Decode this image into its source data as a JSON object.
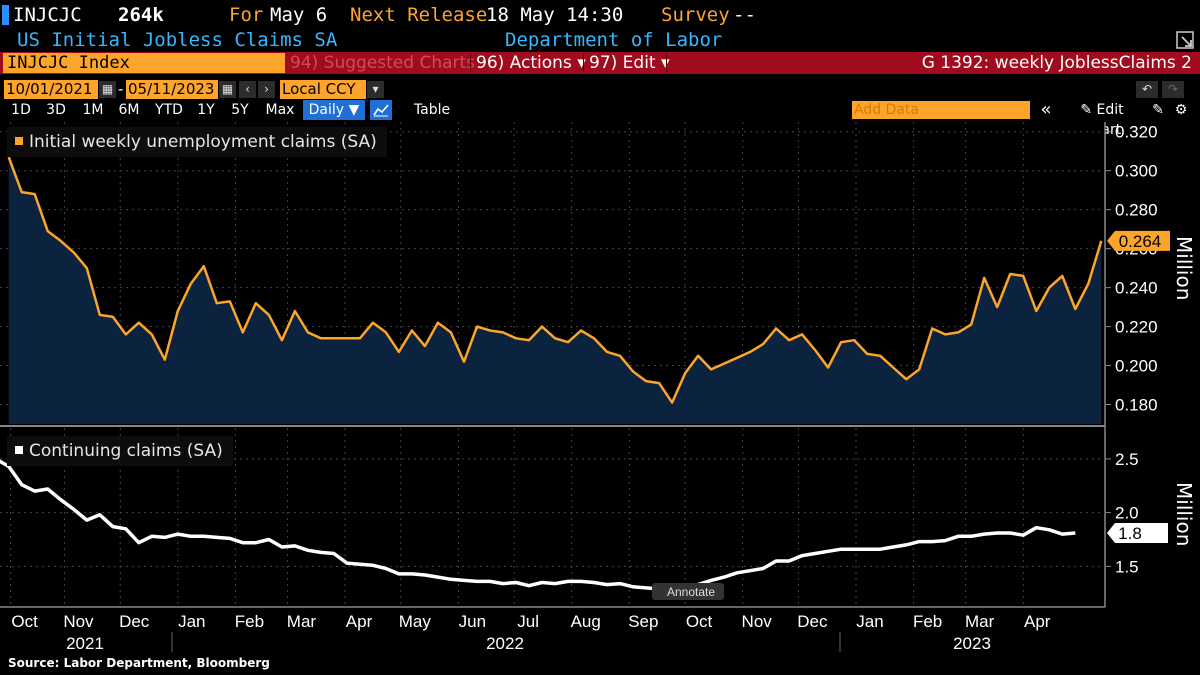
{
  "header": {
    "ticker": "INJCJC",
    "value": "264k",
    "for_label": "For",
    "for_date": "May 6",
    "next_release_label": "Next Release",
    "next_release_date": "18 May 14:30",
    "survey_label": "Survey",
    "survey_value": "--",
    "title": "US Initial Jobless Claims SA",
    "source_agency": "Department of Labor"
  },
  "toolbar": {
    "index_label": "INJCJC Index",
    "suggested": "94) Suggested Charts",
    "actions": "96) Actions",
    "edit": "97) Edit",
    "chart_id": "G 1392: weekly JoblessClaims 2",
    "start_date": "10/01/2021",
    "end_date": "05/11/2023",
    "currency": "Local CCY",
    "periods": [
      "1D",
      "3D",
      "1M",
      "6M",
      "YTD",
      "1Y",
      "5Y",
      "Max"
    ],
    "frequency": "Daily",
    "table_label": "Table",
    "add_data_placeholder": "Add Data",
    "edit_chart": "Edit Chart"
  },
  "colors": {
    "accent_orange": "#fca52a",
    "bar_red": "#a00c1e",
    "title_blue": "#36b6ff",
    "area_fill": "#0c2340"
  },
  "chart_data": [
    {
      "type": "area",
      "title": "Initial weekly unemployment claims (SA)",
      "ylabel": "Million",
      "ylim": [
        0.17,
        0.325
      ],
      "y_ticks": [
        "0.320",
        "0.300",
        "0.280",
        "0.260",
        "0.240",
        "0.220",
        "0.200",
        "0.180"
      ],
      "last_value_label": "0.264",
      "x_start": "2021-10-02",
      "x_step_days": 7,
      "values": [
        0.307,
        0.289,
        0.288,
        0.269,
        0.264,
        0.258,
        0.25,
        0.226,
        0.225,
        0.216,
        0.222,
        0.216,
        0.203,
        0.228,
        0.242,
        0.251,
        0.232,
        0.233,
        0.217,
        0.232,
        0.226,
        0.213,
        0.228,
        0.217,
        0.214,
        0.214,
        0.214,
        0.214,
        0.222,
        0.217,
        0.207,
        0.218,
        0.21,
        0.222,
        0.217,
        0.202,
        0.22,
        0.218,
        0.217,
        0.214,
        0.213,
        0.22,
        0.214,
        0.212,
        0.218,
        0.214,
        0.207,
        0.205,
        0.197,
        0.192,
        0.191,
        0.181,
        0.196,
        0.205,
        0.198,
        0.201,
        0.204,
        0.207,
        0.211,
        0.219,
        0.213,
        0.216,
        0.208,
        0.199,
        0.212,
        0.213,
        0.206,
        0.205,
        0.199,
        0.193,
        0.198,
        0.219,
        0.216,
        0.217,
        0.221,
        0.245,
        0.23,
        0.247,
        0.246,
        0.228,
        0.24,
        0.246,
        0.229,
        0.242,
        0.264
      ],
      "color": "#fca52a"
    },
    {
      "type": "line",
      "title": "Continuing claims (SA)",
      "ylabel": "Million",
      "ylim": [
        1.15,
        2.75
      ],
      "y_ticks": [
        "2.5",
        "2.0",
        "1.5"
      ],
      "last_value_label": "1.8",
      "x_start": "2021-09-25",
      "x_step_days": 7,
      "values": [
        2.5,
        2.43,
        2.26,
        2.2,
        2.22,
        2.12,
        2.03,
        1.93,
        1.98,
        1.87,
        1.85,
        1.72,
        1.78,
        1.77,
        1.8,
        1.78,
        1.78,
        1.77,
        1.76,
        1.72,
        1.72,
        1.75,
        1.68,
        1.69,
        1.65,
        1.63,
        1.62,
        1.53,
        1.52,
        1.51,
        1.48,
        1.43,
        1.43,
        1.42,
        1.4,
        1.38,
        1.37,
        1.36,
        1.36,
        1.34,
        1.35,
        1.32,
        1.35,
        1.34,
        1.36,
        1.36,
        1.35,
        1.33,
        1.34,
        1.31,
        1.3,
        1.29,
        1.29,
        1.31,
        1.33,
        1.37,
        1.4,
        1.44,
        1.46,
        1.48,
        1.55,
        1.55,
        1.6,
        1.62,
        1.64,
        1.66,
        1.66,
        1.66,
        1.66,
        1.68,
        1.7,
        1.73,
        1.73,
        1.74,
        1.78,
        1.78,
        1.8,
        1.81,
        1.81,
        1.79,
        1.86,
        1.84,
        1.8,
        1.81
      ],
      "annotation": "Annotate",
      "color": "#ffffff"
    }
  ],
  "x_axis": {
    "months": [
      {
        "label": "Oct",
        "date": "2021-10-03"
      },
      {
        "label": "Nov",
        "date": "2021-11-01"
      },
      {
        "label": "Dec",
        "date": "2021-12-01"
      },
      {
        "label": "Jan",
        "date": "2022-01-01"
      },
      {
        "label": "Feb",
        "date": "2022-02-01"
      },
      {
        "label": "Mar",
        "date": "2022-03-01"
      },
      {
        "label": "Apr",
        "date": "2022-04-01"
      },
      {
        "label": "May",
        "date": "2022-05-01"
      },
      {
        "label": "Jun",
        "date": "2022-06-01"
      },
      {
        "label": "Jul",
        "date": "2022-07-01"
      },
      {
        "label": "Aug",
        "date": "2022-08-01"
      },
      {
        "label": "Sep",
        "date": "2022-09-01"
      },
      {
        "label": "Oct",
        "date": "2022-10-01"
      },
      {
        "label": "Nov",
        "date": "2022-11-01"
      },
      {
        "label": "Dec",
        "date": "2022-12-01"
      },
      {
        "label": "Jan",
        "date": "2023-01-01"
      },
      {
        "label": "Feb",
        "date": "2023-02-01"
      },
      {
        "label": "Mar",
        "date": "2023-03-01"
      },
      {
        "label": "Apr",
        "date": "2023-04-01"
      }
    ],
    "years": [
      "2021",
      "2022",
      "2023"
    ]
  },
  "footer": {
    "source": "Source: Labor Department, Bloomberg"
  }
}
